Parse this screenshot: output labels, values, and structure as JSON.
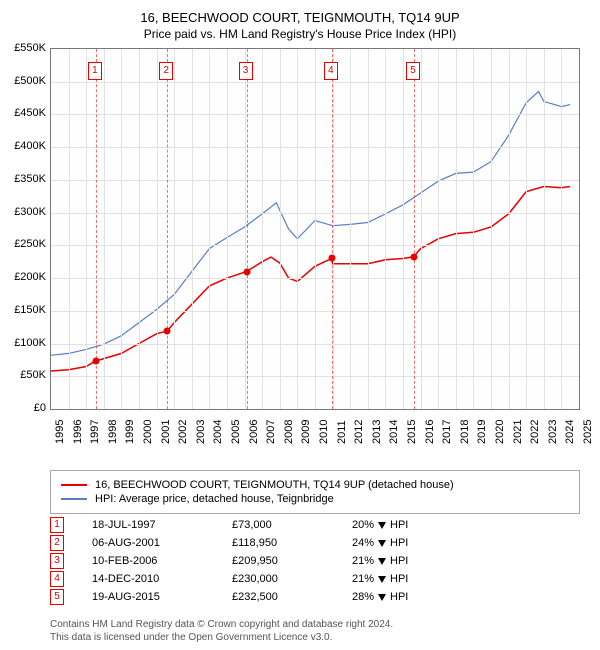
{
  "title": {
    "line1": "16, BEECHWOOD COURT, TEIGNMOUTH, TQ14 9UP",
    "line2": "Price paid vs. HM Land Registry's House Price Index (HPI)"
  },
  "chart": {
    "type": "line",
    "background_color": "#fefefe",
    "grid_color": "#e2e2e2",
    "border_color": "#777777",
    "x_axis": {
      "min": 1995,
      "max": 2025,
      "ticks": [
        1995,
        1996,
        1997,
        1998,
        1999,
        2000,
        2001,
        2002,
        2003,
        2004,
        2005,
        2006,
        2007,
        2008,
        2009,
        2010,
        2011,
        2012,
        2013,
        2014,
        2015,
        2016,
        2017,
        2018,
        2019,
        2020,
        2021,
        2022,
        2023,
        2024,
        2025
      ],
      "label_fontsize": 11,
      "label_rotation_deg": -90
    },
    "y_axis": {
      "min": 0,
      "max": 550000,
      "tick_step": 50000,
      "tick_labels": [
        "£0",
        "£50K",
        "£100K",
        "£150K",
        "£200K",
        "£250K",
        "£300K",
        "£350K",
        "£400K",
        "£450K",
        "£500K",
        "£550K"
      ],
      "label_fontsize": 11
    },
    "series": [
      {
        "name": "16, BEECHWOOD COURT, TEIGNMOUTH, TQ14 9UP (detached house)",
        "color": "#e60000",
        "line_width": 1.5,
        "points": [
          [
            1995.0,
            58000
          ],
          [
            1996.0,
            60000
          ],
          [
            1997.0,
            65000
          ],
          [
            1997.5,
            73000
          ],
          [
            1998.0,
            77000
          ],
          [
            1999.0,
            85000
          ],
          [
            2000.0,
            100000
          ],
          [
            2001.0,
            115000
          ],
          [
            2001.6,
            118950
          ],
          [
            2002.0,
            132000
          ],
          [
            2003.0,
            160000
          ],
          [
            2004.0,
            188000
          ],
          [
            2005.0,
            200000
          ],
          [
            2006.1,
            209950
          ],
          [
            2007.0,
            225000
          ],
          [
            2007.5,
            232000
          ],
          [
            2008.0,
            223000
          ],
          [
            2008.5,
            200000
          ],
          [
            2009.0,
            195000
          ],
          [
            2010.0,
            218000
          ],
          [
            2010.95,
            230000
          ],
          [
            2011.0,
            222000
          ],
          [
            2012.0,
            222000
          ],
          [
            2013.0,
            222000
          ],
          [
            2014.0,
            228000
          ],
          [
            2015.0,
            230000
          ],
          [
            2015.6,
            232500
          ],
          [
            2016.0,
            245000
          ],
          [
            2017.0,
            260000
          ],
          [
            2018.0,
            268000
          ],
          [
            2019.0,
            270000
          ],
          [
            2020.0,
            278000
          ],
          [
            2021.0,
            298000
          ],
          [
            2022.0,
            332000
          ],
          [
            2023.0,
            340000
          ],
          [
            2024.0,
            338000
          ],
          [
            2024.5,
            340000
          ]
        ]
      },
      {
        "name": "HPI: Average price, detached house, Teignbridge",
        "color": "#5a7fc0",
        "line_width": 1.2,
        "points": [
          [
            1995.0,
            82000
          ],
          [
            1996.0,
            85000
          ],
          [
            1997.0,
            91000
          ],
          [
            1998.0,
            99000
          ],
          [
            1999.0,
            112000
          ],
          [
            2000.0,
            132000
          ],
          [
            2001.0,
            152000
          ],
          [
            2002.0,
            175000
          ],
          [
            2003.0,
            210000
          ],
          [
            2004.0,
            245000
          ],
          [
            2005.0,
            262000
          ],
          [
            2006.0,
            278000
          ],
          [
            2007.0,
            298000
          ],
          [
            2007.8,
            315000
          ],
          [
            2008.5,
            275000
          ],
          [
            2009.0,
            260000
          ],
          [
            2010.0,
            288000
          ],
          [
            2011.0,
            280000
          ],
          [
            2012.0,
            282000
          ],
          [
            2013.0,
            285000
          ],
          [
            2014.0,
            298000
          ],
          [
            2015.0,
            312000
          ],
          [
            2016.0,
            330000
          ],
          [
            2017.0,
            348000
          ],
          [
            2018.0,
            360000
          ],
          [
            2019.0,
            362000
          ],
          [
            2020.0,
            378000
          ],
          [
            2021.0,
            418000
          ],
          [
            2022.0,
            468000
          ],
          [
            2022.7,
            485000
          ],
          [
            2023.0,
            470000
          ],
          [
            2024.0,
            462000
          ],
          [
            2024.5,
            465000
          ]
        ]
      }
    ],
    "sale_vlines": {
      "color": "#e60000",
      "dash": "dashed",
      "x_positions": [
        1997.55,
        2001.6,
        2006.11,
        2010.95,
        2015.63
      ]
    },
    "sale_markers_box": {
      "border_color": "#e60000",
      "text_color": "#e60000",
      "background": "#ffffff",
      "fontsize": 10
    },
    "sale_points": {
      "color": "#e60000",
      "radius": 3.5,
      "coords": [
        [
          1997.55,
          73000
        ],
        [
          2001.6,
          118950
        ],
        [
          2006.11,
          209950
        ],
        [
          2010.95,
          230000
        ],
        [
          2015.63,
          232500
        ]
      ]
    }
  },
  "legend": {
    "border_color": "#aaaaaa",
    "fontsize": 11,
    "items": [
      {
        "color": "#e60000",
        "label": "16, BEECHWOOD COURT, TEIGNMOUTH, TQ14 9UP (detached house)"
      },
      {
        "color": "#5a7fc0",
        "label": "HPI: Average price, detached house, Teignbridge"
      }
    ]
  },
  "sales_table": {
    "fontsize": 11,
    "arrow_color": "#000000",
    "rows": [
      {
        "n": "1",
        "date": "18-JUL-1997",
        "price": "£73,000",
        "delta": "20%",
        "vs": "HPI"
      },
      {
        "n": "2",
        "date": "06-AUG-2001",
        "price": "£118,950",
        "delta": "24%",
        "vs": "HPI"
      },
      {
        "n": "3",
        "date": "10-FEB-2006",
        "price": "£209,950",
        "delta": "21%",
        "vs": "HPI"
      },
      {
        "n": "4",
        "date": "14-DEC-2010",
        "price": "£230,000",
        "delta": "21%",
        "vs": "HPI"
      },
      {
        "n": "5",
        "date": "19-AUG-2015",
        "price": "£232,500",
        "delta": "28%",
        "vs": "HPI"
      }
    ]
  },
  "footer": {
    "line1": "Contains HM Land Registry data © Crown copyright and database right 2024.",
    "line2": "This data is licensed under the Open Government Licence v3.0."
  }
}
